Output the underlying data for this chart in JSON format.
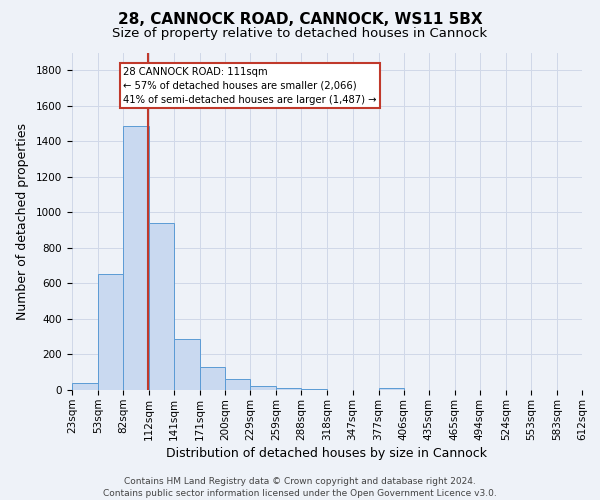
{
  "title1": "28, CANNOCK ROAD, CANNOCK, WS11 5BX",
  "title2": "Size of property relative to detached houses in Cannock",
  "xlabel": "Distribution of detached houses by size in Cannock",
  "ylabel": "Number of detached properties",
  "bin_labels": [
    "23sqm",
    "53sqm",
    "82sqm",
    "112sqm",
    "141sqm",
    "171sqm",
    "200sqm",
    "229sqm",
    "259sqm",
    "288sqm",
    "318sqm",
    "347sqm",
    "377sqm",
    "406sqm",
    "435sqm",
    "465sqm",
    "494sqm",
    "524sqm",
    "553sqm",
    "583sqm",
    "612sqm"
  ],
  "bin_edges": [
    23,
    53,
    82,
    112,
    141,
    171,
    200,
    229,
    259,
    288,
    318,
    347,
    377,
    406,
    435,
    465,
    494,
    524,
    553,
    583,
    612
  ],
  "bar_heights": [
    38,
    651,
    1484,
    938,
    287,
    130,
    62,
    22,
    10,
    4,
    2,
    2,
    14,
    0,
    0,
    0,
    0,
    0,
    0,
    0
  ],
  "bar_color": "#c9d9f0",
  "bar_edgecolor": "#5b9bd5",
  "grid_color": "#d0d8e8",
  "bg_color": "#eef2f8",
  "vline_x": 111,
  "vline_color": "#c0392b",
  "annotation_line1": "28 CANNOCK ROAD: 111sqm",
  "annotation_line2": "← 57% of detached houses are smaller (2,066)",
  "annotation_line3": "41% of semi-detached houses are larger (1,487) →",
  "annotation_box_edgecolor": "#c0392b",
  "annotation_box_facecolor": "#ffffff",
  "ylim": [
    0,
    1900
  ],
  "yticks": [
    0,
    200,
    400,
    600,
    800,
    1000,
    1200,
    1400,
    1600,
    1800
  ],
  "footnote": "Contains HM Land Registry data © Crown copyright and database right 2024.\nContains public sector information licensed under the Open Government Licence v3.0.",
  "title1_fontsize": 11,
  "title2_fontsize": 9.5,
  "xlabel_fontsize": 9,
  "ylabel_fontsize": 9,
  "tick_fontsize": 7.5,
  "footnote_fontsize": 6.5
}
